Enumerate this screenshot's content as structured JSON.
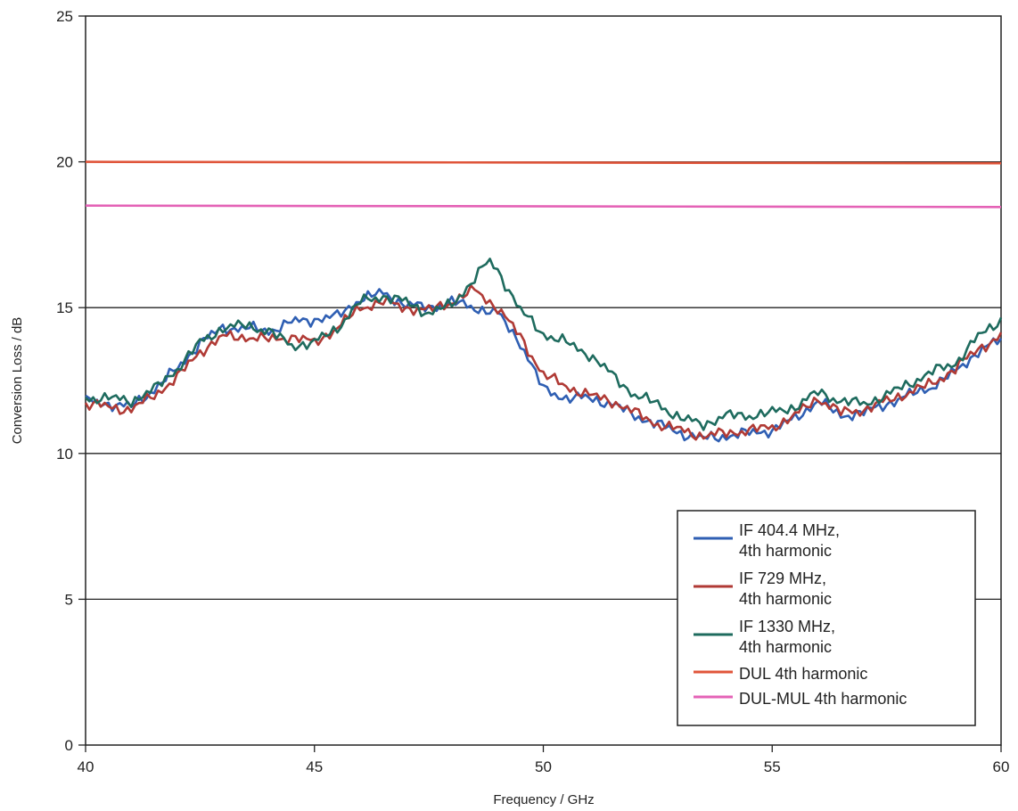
{
  "chart_data": {
    "type": "line",
    "title": "",
    "xlabel": "Frequency / GHz",
    "ylabel": "Conversion Loss / dB",
    "xlim": [
      40,
      60
    ],
    "ylim": [
      0,
      25
    ],
    "x_ticks": [
      "40",
      "45",
      "50",
      "55",
      "60"
    ],
    "y_ticks": [
      "0",
      "5",
      "10",
      "15",
      "20",
      "25"
    ],
    "grid": "horizontal",
    "legend_position": "lower-right",
    "series": [
      {
        "name": "IF 404.4 MHz, 4th harmonic",
        "legend_lines": [
          "IF 404.4 MHz,",
          "4th harmonic"
        ],
        "color": "#2f5fb3",
        "x": [
          40,
          40.5,
          41,
          41.5,
          42,
          42.5,
          43,
          43.5,
          44,
          44.5,
          45,
          45.5,
          46,
          46.5,
          47,
          47.5,
          48,
          48.5,
          49,
          49.5,
          50,
          50.5,
          51,
          51.5,
          52,
          52.5,
          53,
          53.5,
          54,
          54.5,
          55,
          55.5,
          56,
          56.5,
          57,
          57.5,
          58,
          58.5,
          59,
          59.5,
          60
        ],
        "y": [
          11.8,
          11.7,
          11.6,
          12.2,
          12.9,
          13.8,
          14.3,
          14.3,
          14.2,
          14.5,
          14.6,
          14.7,
          15.3,
          15.5,
          15.1,
          15.0,
          15.2,
          15.0,
          14.8,
          13.8,
          12.2,
          11.9,
          11.9,
          11.7,
          11.3,
          11.0,
          10.7,
          10.5,
          10.6,
          10.7,
          10.8,
          11.2,
          11.8,
          11.3,
          11.4,
          11.7,
          12.0,
          12.3,
          12.8,
          13.5,
          13.9
        ]
      },
      {
        "name": "IF 729 MHz, 4th harmonic",
        "legend_lines": [
          "IF 729 MHz,",
          "4th harmonic"
        ],
        "color": "#b03a35",
        "x": [
          40,
          40.5,
          41,
          41.5,
          42,
          42.5,
          43,
          43.5,
          44,
          44.5,
          45,
          45.5,
          46,
          46.5,
          47,
          47.5,
          48,
          48.5,
          49,
          49.5,
          50,
          50.5,
          51,
          51.5,
          52,
          52.5,
          53,
          53.5,
          54,
          54.5,
          55,
          55.5,
          56,
          56.5,
          57,
          57.5,
          58,
          58.5,
          59,
          59.5,
          60
        ],
        "y": [
          11.7,
          11.6,
          11.5,
          12.0,
          12.6,
          13.5,
          14.0,
          14.0,
          13.9,
          14.0,
          13.8,
          14.3,
          15.0,
          15.2,
          15.0,
          14.9,
          15.2,
          15.6,
          15.0,
          14.0,
          12.7,
          12.3,
          12.0,
          11.8,
          11.4,
          11.0,
          10.8,
          10.6,
          10.7,
          10.8,
          10.9,
          11.3,
          11.9,
          11.4,
          11.5,
          11.8,
          12.1,
          12.4,
          12.9,
          13.6,
          14.0
        ]
      },
      {
        "name": "IF 1330 MHz, 4th harmonic",
        "legend_lines": [
          "IF 1330 MHz,",
          "4th harmonic"
        ],
        "color": "#1e6b5e",
        "x": [
          40,
          40.5,
          41,
          41.5,
          42,
          42.5,
          43,
          43.5,
          44,
          44.5,
          45,
          45.5,
          46,
          46.5,
          47,
          47.5,
          48,
          48.5,
          48.8,
          49,
          49.5,
          50,
          50.5,
          51,
          51.5,
          52,
          52.5,
          53,
          53.5,
          54,
          54.5,
          55,
          55.5,
          56,
          56.5,
          57,
          57.5,
          58,
          58.5,
          59,
          59.5,
          60
        ],
        "y": [
          11.9,
          11.9,
          11.8,
          12.2,
          12.9,
          13.8,
          14.3,
          14.4,
          14.2,
          13.7,
          13.8,
          14.3,
          15.2,
          15.4,
          15.2,
          14.8,
          15.1,
          16.0,
          16.6,
          16.3,
          14.9,
          14.1,
          13.8,
          13.4,
          12.7,
          12.0,
          11.7,
          11.2,
          11.0,
          11.3,
          11.3,
          11.4,
          11.6,
          12.1,
          11.8,
          11.7,
          12.0,
          12.4,
          12.8,
          13.1,
          14.0,
          14.6
        ]
      },
      {
        "name": "DUL 4th harmonic",
        "legend_lines": [
          "DUL 4th harmonic"
        ],
        "color": "#e0553a",
        "x": [
          40,
          60
        ],
        "y": [
          20.0,
          19.95
        ]
      },
      {
        "name": "DUL-MUL 4th harmonic",
        "legend_lines": [
          "DUL-MUL 4th harmonic"
        ],
        "color": "#e462b6",
        "x": [
          40,
          60
        ],
        "y": [
          18.5,
          18.45
        ]
      }
    ]
  }
}
